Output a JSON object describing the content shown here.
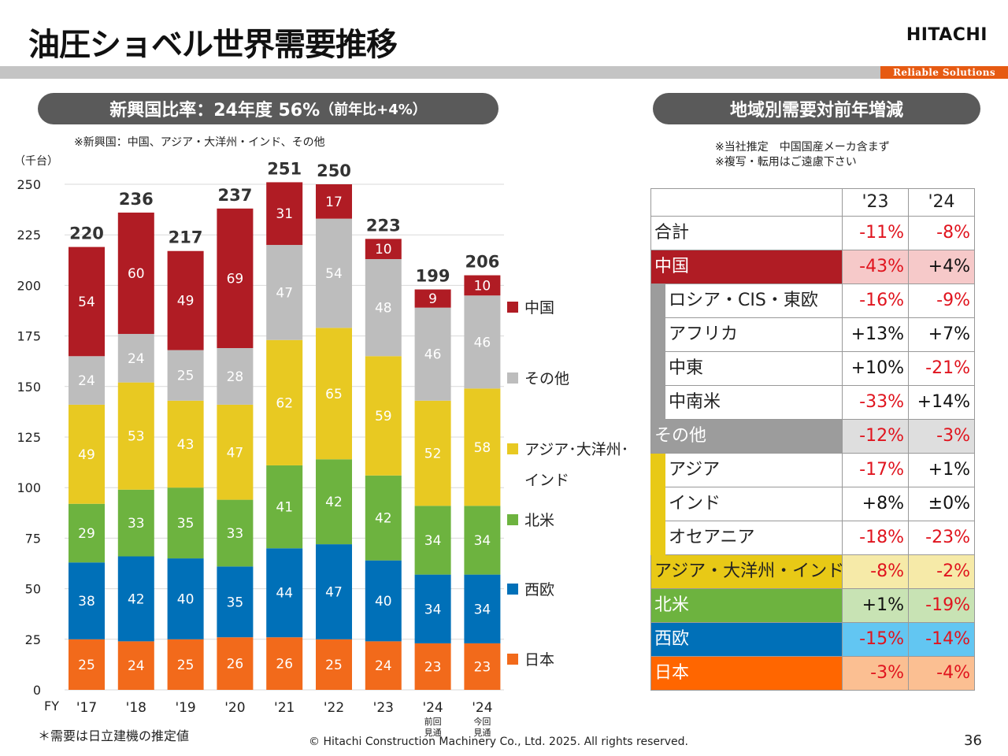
{
  "header": {
    "title": "油圧ショベル世界需要推移",
    "logo": "HITACHI",
    "tagline": "Reliable Solutions"
  },
  "left_panel": {
    "pill_main": "新興国比率：24年度 56%",
    "pill_small": "（前年比+4%）",
    "note": "※新興国：中国、アジア・大洋州・インド、その他",
    "unit": "（千台）",
    "footnote": "＊需要は日立建機の推定値"
  },
  "right_panel": {
    "pill": "地域別需要対前年増減",
    "note_estimate": "※当社推定　中国国産メーカ含まず",
    "note_copy": "※複写・転用はご遠慮下さい"
  },
  "footer": {
    "copyright": "© Hitachi Construction Machinery Co., Ltd. 2025. All rights reserved.",
    "page": "36"
  },
  "colors": {
    "china": "#b01c24",
    "other": "#bdbdbd",
    "asia": "#e8c922",
    "north_america": "#6db33f",
    "west_europe": "#0070b8",
    "japan": "#f26a1b"
  },
  "chart_data": {
    "type": "bar",
    "stacked": true,
    "x_prefix": "FY",
    "categories": [
      "'17",
      "'18",
      "'19",
      "'20",
      "'21",
      "'22",
      "'23",
      "'24",
      "'24"
    ],
    "category_sublabels": [
      "",
      "",
      "",
      "",
      "",
      "",
      "",
      "前回\n見通",
      "今回\n見通"
    ],
    "ylim": [
      0,
      250
    ],
    "yticks": [
      0,
      25,
      50,
      75,
      100,
      125,
      150,
      175,
      200,
      225,
      250
    ],
    "totals": [
      220,
      236,
      217,
      237,
      251,
      250,
      223,
      199,
      206
    ],
    "legend_position": "right",
    "series": [
      {
        "name": "日本",
        "color": "#f26a1b",
        "values": [
          25,
          24,
          25,
          26,
          26,
          25,
          24,
          23,
          23
        ]
      },
      {
        "name": "西欧",
        "color": "#0070b8",
        "values": [
          38,
          42,
          40,
          35,
          44,
          47,
          40,
          34,
          34
        ]
      },
      {
        "name": "北米",
        "color": "#6db33f",
        "values": [
          29,
          33,
          35,
          33,
          41,
          42,
          42,
          34,
          34
        ]
      },
      {
        "name": "アジア･大洋州･インド",
        "color": "#e8c922",
        "values": [
          49,
          53,
          43,
          47,
          62,
          65,
          59,
          52,
          58
        ]
      },
      {
        "name": "その他",
        "color": "#bdbdbd",
        "values": [
          24,
          24,
          25,
          28,
          47,
          54,
          48,
          46,
          46
        ]
      },
      {
        "name": "中国",
        "color": "#b01c24",
        "values": [
          54,
          60,
          49,
          69,
          31,
          17,
          10,
          9,
          10
        ]
      }
    ]
  },
  "table": {
    "headers": [
      "'23",
      "'24"
    ],
    "rows": [
      {
        "label": "合計",
        "v23": "-11%",
        "v24": "-8%",
        "indent": false,
        "label_bg": "#ffffff",
        "val_bg": "#ffffff"
      },
      {
        "label": "中国",
        "v23": "-43%",
        "v24": "+4%",
        "indent": false,
        "label_bg": "#b01c24",
        "val_bg": "#f6c9c9",
        "white": true
      },
      {
        "label": "ロシア・CIS・東欧",
        "v23": "-16%",
        "v24": "-9%",
        "indent": "grey",
        "label_bg": "#ffffff",
        "val_bg": "#ffffff"
      },
      {
        "label": "アフリカ",
        "v23": "+13%",
        "v24": "+7%",
        "indent": "grey",
        "label_bg": "#ffffff",
        "val_bg": "#ffffff"
      },
      {
        "label": "中東",
        "v23": "+10%",
        "v24": "-21%",
        "indent": "grey",
        "label_bg": "#ffffff",
        "val_bg": "#ffffff"
      },
      {
        "label": "中南米",
        "v23": "-33%",
        "v24": "+14%",
        "indent": "grey",
        "label_bg": "#ffffff",
        "val_bg": "#ffffff"
      },
      {
        "label": "その他",
        "v23": "-12%",
        "v24": "-3%",
        "indent": false,
        "label_bg": "#9c9c9c",
        "val_bg": "#dedede",
        "white": true
      },
      {
        "label": "アジア",
        "v23": "-17%",
        "v24": "+1%",
        "indent": "yellow",
        "label_bg": "#ffffff",
        "val_bg": "#ffffff"
      },
      {
        "label": "インド",
        "v23": "+8%",
        "v24": "±0%",
        "indent": "yellow",
        "label_bg": "#ffffff",
        "val_bg": "#ffffff"
      },
      {
        "label": "オセアニア",
        "v23": "-18%",
        "v24": "-23%",
        "indent": "yellow",
        "label_bg": "#ffffff",
        "val_bg": "#ffffff"
      },
      {
        "label": "アジア・大洋州・インド",
        "v23": "-8%",
        "v24": "-2%",
        "indent": false,
        "label_bg": "#e8c916",
        "val_bg": "#f6eaa8"
      },
      {
        "label": "北米",
        "v23": "+1%",
        "v24": "-19%",
        "indent": false,
        "label_bg": "#6db33f",
        "val_bg": "#c8e3b4",
        "white": true
      },
      {
        "label": "西欧",
        "v23": "-15%",
        "v24": "-14%",
        "indent": false,
        "label_bg": "#0070b8",
        "val_bg": "#62c6f2",
        "white": true
      },
      {
        "label": "日本",
        "v23": "-3%",
        "v24": "-4%",
        "indent": false,
        "label_bg": "#ff6600",
        "val_bg": "#fbbf92",
        "white": true
      }
    ]
  }
}
